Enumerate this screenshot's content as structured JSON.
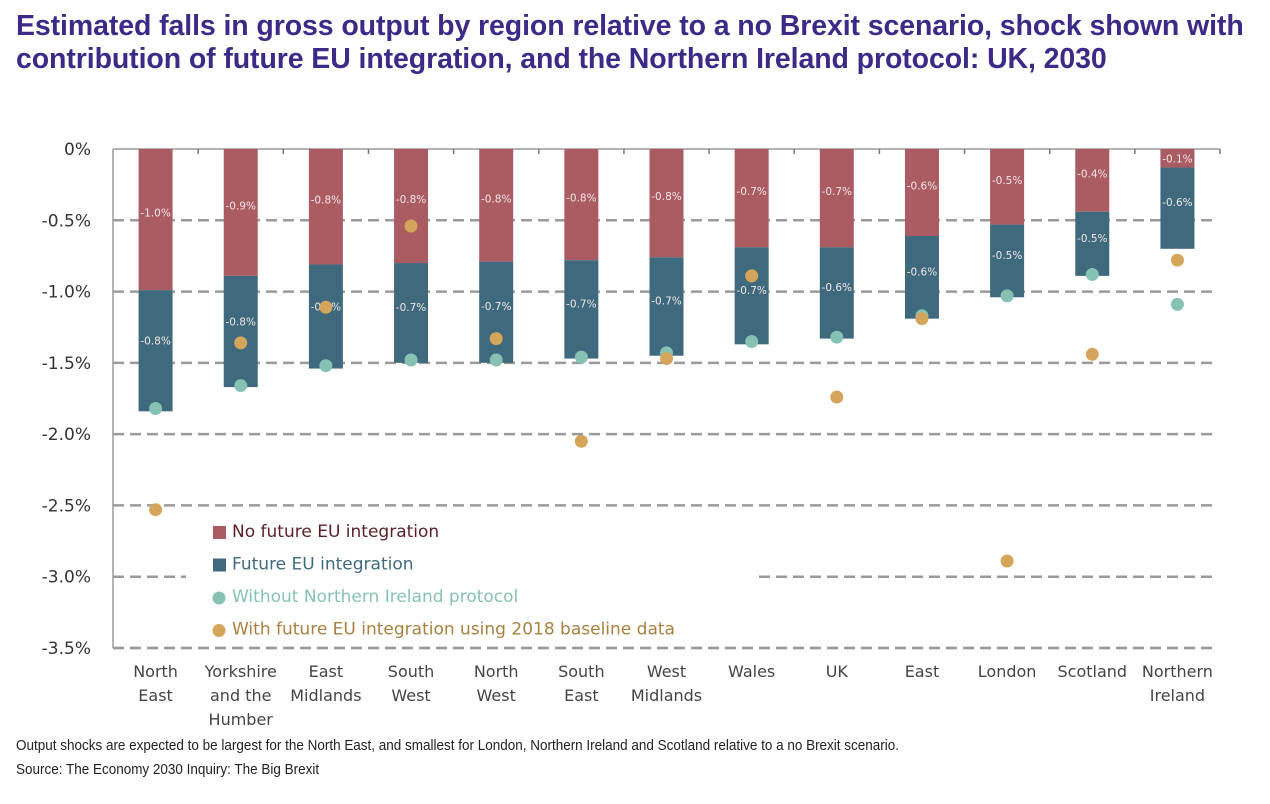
{
  "title": "Estimated falls in gross output by region relative to a no Brexit scenario, shock shown with contribution of future EU integration, and the Northern Ireland protocol: UK, 2030",
  "footer": {
    "note": "Output shocks are expected to be largest for the North East, and smallest for London, Northern Ireland and Scotland relative to a no Brexit scenario.",
    "source": "Source: The Economy 2030 Inquiry: The Big Brexit"
  },
  "colors": {
    "no_future_eu": "#ab5c62",
    "future_eu": "#3f6a7e",
    "without_ni_protocol": "#86c2b4",
    "baseline_2018": "#d4a55a",
    "title": "#3d2a86",
    "grid": "#9a9a9a"
  },
  "chart_data": {
    "type": "bar",
    "stacked": true,
    "title": "Estimated falls in gross output by region relative to a no Brexit scenario, shock shown with contribution of future EU integration, and the Northern Ireland protocol: UK, 2030",
    "xlabel": "",
    "ylabel": "",
    "ylim": [
      -3.5,
      0
    ],
    "yticks": [
      0,
      -0.5,
      -1.0,
      -1.5,
      -2.0,
      -2.5,
      -3.0,
      -3.5
    ],
    "ytick_labels": [
      "0%",
      "-0.5%",
      "-1.0%",
      "-1.5%",
      "-2.0%",
      "-2.5%",
      "-3.0%",
      "-3.5%"
    ],
    "grid": "horizontal dashed",
    "legend_position": "bottom-left inside plot",
    "categories": [
      [
        "North",
        "East"
      ],
      [
        "Yorkshire",
        "and the",
        "Humber"
      ],
      [
        "East",
        "Midlands"
      ],
      [
        "South",
        "West"
      ],
      [
        "North",
        "West"
      ],
      [
        "South",
        "East"
      ],
      [
        "West",
        "Midlands"
      ],
      [
        "Wales"
      ],
      [
        "UK"
      ],
      [
        "East"
      ],
      [
        "London"
      ],
      [
        "Scotland"
      ],
      [
        "Northern",
        "Ireland"
      ]
    ],
    "series": [
      {
        "name": "No future EU integration",
        "kind": "bar",
        "color_key": "no_future_eu",
        "values": [
          -0.99,
          -0.89,
          -0.81,
          -0.8,
          -0.79,
          -0.78,
          -0.76,
          -0.69,
          -0.69,
          -0.61,
          -0.53,
          -0.44,
          -0.13
        ],
        "labels": [
          "-1.0%",
          "-0.9%",
          "-0.8%",
          "-0.8%",
          "-0.8%",
          "-0.8%",
          "-0.8%",
          "-0.7%",
          "-0.7%",
          "-0.6%",
          "-0.5%",
          "-0.4%",
          "-0.1%"
        ]
      },
      {
        "name": "Future EU integration",
        "kind": "bar",
        "color_key": "future_eu",
        "values": [
          -0.85,
          -0.78,
          -0.73,
          -0.7,
          -0.71,
          -0.69,
          -0.69,
          -0.68,
          -0.64,
          -0.58,
          -0.51,
          -0.45,
          -0.57
        ],
        "labels": [
          "-0.8%",
          "-0.8%",
          "-0.7%",
          "-0.7%",
          "-0.7%",
          "-0.7%",
          "-0.7%",
          "-0.7%",
          "-0.6%",
          "-0.6%",
          "-0.5%",
          "-0.5%",
          "-0.6%"
        ]
      },
      {
        "name": "Without Northern Ireland protocol",
        "kind": "point",
        "color_key": "without_ni_protocol",
        "values": [
          -1.82,
          -1.66,
          -1.52,
          -1.48,
          -1.48,
          -1.46,
          -1.43,
          -1.35,
          -1.32,
          -1.17,
          -1.03,
          -0.88,
          -1.09
        ]
      },
      {
        "name": "With future EU integration using 2018 baseline data",
        "kind": "point",
        "color_key": "baseline_2018",
        "values": [
          -2.53,
          -1.36,
          -1.11,
          -0.54,
          -1.33,
          -2.05,
          -1.47,
          -0.89,
          -1.74,
          -1.19,
          -2.89,
          -1.44,
          -0.78
        ]
      }
    ]
  }
}
